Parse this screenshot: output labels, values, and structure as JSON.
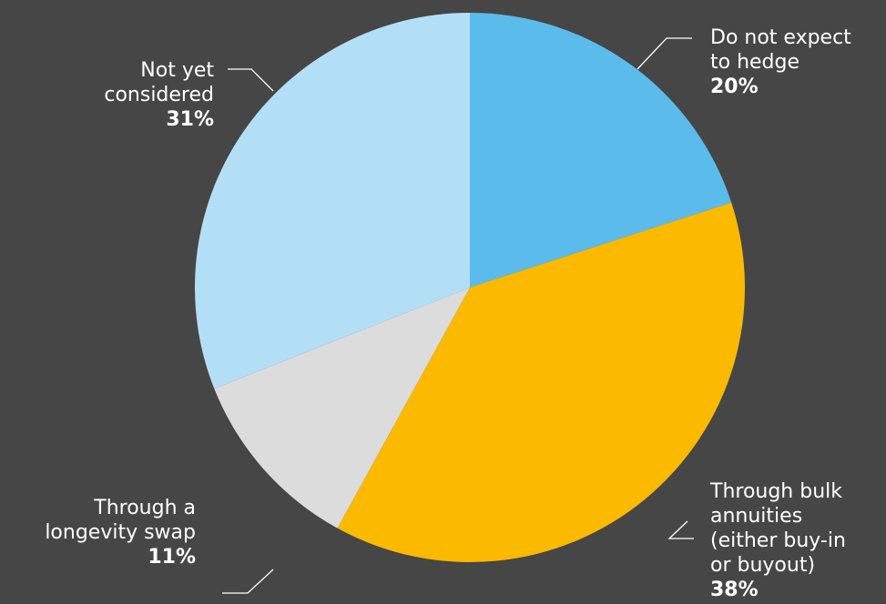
{
  "chart_data": {
    "type": "pie",
    "slices": [
      {
        "label": "Do not expect\nto hedge",
        "value": 20,
        "value_label": "20%",
        "color": "#5BBCEC"
      },
      {
        "label": "Through bulk\nannuities\n(either buy-in\nor buyout)",
        "value": 38,
        "value_label": "38%",
        "color": "#FBB900"
      },
      {
        "label": "Through a\nlongevity swap",
        "value": 11,
        "value_label": "11%",
        "color": "#DCDCDC"
      },
      {
        "label": "Not yet\nconsidered",
        "value": 31,
        "value_label": "31%",
        "color": "#B3DFF6"
      }
    ],
    "start_angle": "12 o'clock",
    "direction": "clockwise",
    "legend": "none",
    "title": ""
  },
  "background_color": "#464646",
  "label_color": "#FFFFFF"
}
